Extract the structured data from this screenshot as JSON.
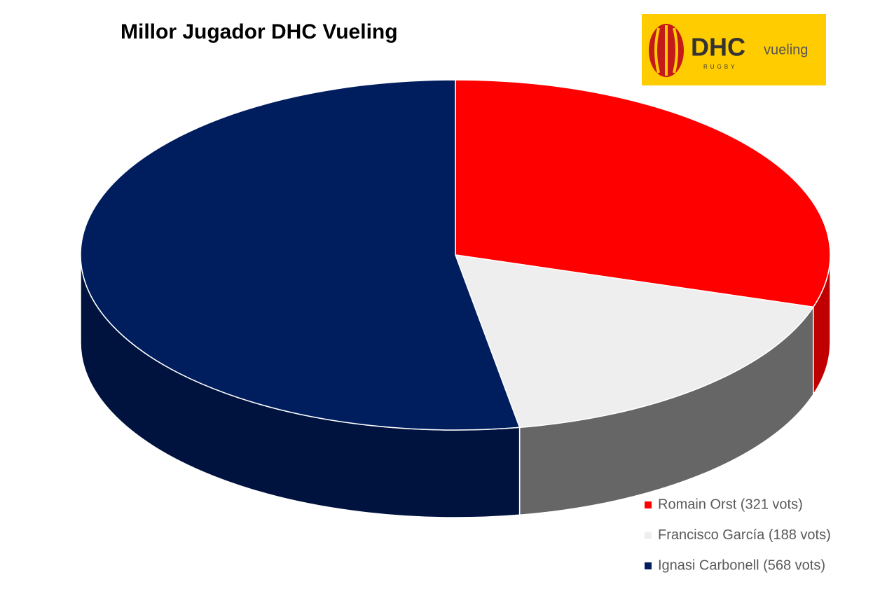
{
  "chart_data": {
    "type": "pie3d",
    "title": "Millor Jugador DHC Vueling",
    "categories": [
      "Romain Orst (321 vots)",
      "Francisco García (188 vots)",
      "Ignasi Carbonell (568 vots)"
    ],
    "values": [
      321,
      188,
      568
    ],
    "colors": [
      "#ff0000",
      "#eeeeee",
      "#001d5e"
    ],
    "side_colors": [
      "#c00000",
      "#666666",
      "#00133f"
    ],
    "legend": "bottom-right"
  },
  "logo": {
    "name": "DHC",
    "sponsor": "vueling",
    "sport": "RUGBY"
  }
}
